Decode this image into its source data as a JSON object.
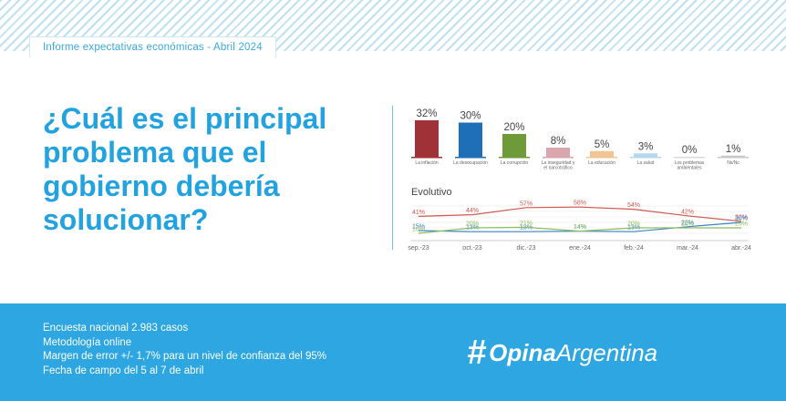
{
  "header": {
    "tag": "Informe expectativas económicas - Abril 2024"
  },
  "question": {
    "lines": [
      "¿Cuál es el principal",
      "problema que el",
      "gobierno debería",
      "solucionar?"
    ]
  },
  "footer": {
    "lines": [
      "Encuesta nacional 2.983 casos",
      "Metodología online",
      "Margen de error +/- 1,7% para un nivel de confianza del 95%",
      "Fecha de campo del 5 al 7 de abril"
    ]
  },
  "logo": {
    "mark": "#",
    "bold": "Opina",
    "light": "Argentina"
  },
  "colors": {
    "accent": "#22a3e0",
    "band": "#2da6e2"
  },
  "chart_data": [
    {
      "type": "bar",
      "categories": [
        [
          "La inflación"
        ],
        [
          "La desocupación"
        ],
        [
          "La corrupción"
        ],
        [
          "La inseguridad y",
          "el narcotráfico"
        ],
        [
          "La educación"
        ],
        [
          "La salud"
        ],
        [
          "Los problemas",
          "ambientales"
        ],
        [
          "Ns/Nc"
        ]
      ],
      "values": [
        32,
        30,
        20,
        8,
        5,
        3,
        0,
        1
      ],
      "value_labels": [
        "32%",
        "30%",
        "20%",
        "8%",
        "5%",
        "3%",
        "0%",
        "1%"
      ],
      "colors": [
        "#a03136",
        "#1f6fb8",
        "#6e9a3a",
        "#d9a6ad",
        "#f1c494",
        "#b5d8ee",
        "#d8d8d8",
        "#c8c8c8"
      ],
      "ylim": [
        0,
        32
      ]
    },
    {
      "type": "line",
      "title": "Evolutivo",
      "x": [
        "sep.-23",
        "oct.-23",
        "dic.-23",
        "ene.-24",
        "feb.-24",
        "mar.-24",
        "abr.-24"
      ],
      "series": [
        {
          "values": [
            41,
            44,
            57,
            58,
            54,
            42,
            32
          ],
          "labels": [
            "41%",
            "44%",
            "57%",
            "58%",
            "54%",
            "42%",
            "32%"
          ],
          "color": "#d0584f"
        },
        {
          "values": [
            15,
            13,
            13,
            14,
            13,
            22,
            30
          ],
          "labels": [
            "15%",
            "13%",
            "13%",
            "14%",
            "13%",
            "22%",
            "30%"
          ],
          "color": "#3a85c6"
        },
        {
          "values": [
            10,
            20,
            21,
            14,
            20,
            20,
            20
          ],
          "labels": [
            "10%",
            "20%",
            "21%",
            "14%",
            "20%",
            "20%",
            "20%"
          ],
          "color": "#8fbd5a"
        }
      ],
      "ylim": [
        0,
        70
      ],
      "grid": true
    }
  ]
}
